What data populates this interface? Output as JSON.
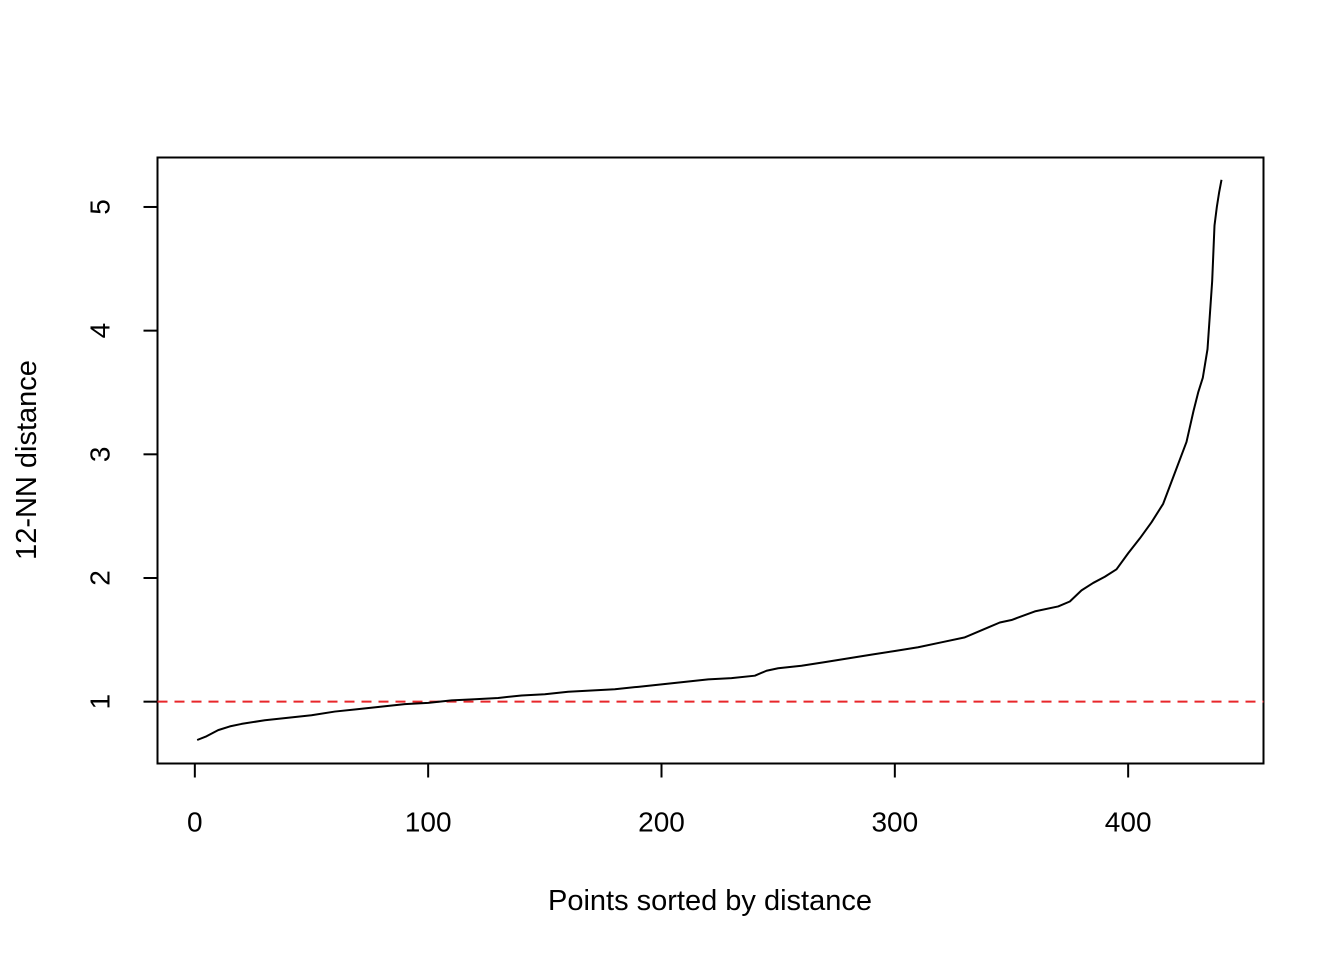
{
  "chart_data": {
    "type": "line",
    "title": "",
    "xlabel": "Points sorted by distance",
    "ylabel": "12-NN distance",
    "xlim": [
      -16,
      458
    ],
    "ylim": [
      0.5,
      5.4
    ],
    "x_ticks": [
      0,
      100,
      200,
      300,
      400
    ],
    "y_ticks": [
      1,
      2,
      3,
      4,
      5
    ],
    "grid": false,
    "legend": "none",
    "series": [
      {
        "color": "#000000",
        "x": [
          1,
          5,
          10,
          15,
          20,
          30,
          40,
          50,
          60,
          70,
          80,
          90,
          100,
          110,
          120,
          130,
          140,
          150,
          160,
          170,
          180,
          190,
          200,
          210,
          220,
          230,
          240,
          245,
          250,
          260,
          270,
          280,
          290,
          300,
          310,
          320,
          330,
          340,
          345,
          350,
          360,
          370,
          375,
          380,
          385,
          390,
          395,
          400,
          405,
          410,
          415,
          420,
          425,
          428,
          430,
          432,
          434,
          436,
          437,
          438,
          439,
          440
        ],
        "y": [
          0.69,
          0.72,
          0.77,
          0.8,
          0.82,
          0.85,
          0.87,
          0.89,
          0.92,
          0.94,
          0.96,
          0.98,
          0.99,
          1.01,
          1.02,
          1.03,
          1.05,
          1.06,
          1.08,
          1.09,
          1.1,
          1.12,
          1.14,
          1.16,
          1.18,
          1.19,
          1.21,
          1.25,
          1.27,
          1.29,
          1.32,
          1.35,
          1.38,
          1.41,
          1.44,
          1.48,
          1.52,
          1.6,
          1.64,
          1.66,
          1.73,
          1.77,
          1.81,
          1.9,
          1.96,
          2.01,
          2.07,
          2.2,
          2.32,
          2.45,
          2.6,
          2.85,
          3.1,
          3.35,
          3.5,
          3.62,
          3.85,
          4.4,
          4.85,
          5.0,
          5.12,
          5.22
        ]
      }
    ],
    "reference_lines": [
      {
        "axis": "y",
        "value": 1,
        "style": "dashed",
        "color": "#e8262a"
      }
    ]
  }
}
